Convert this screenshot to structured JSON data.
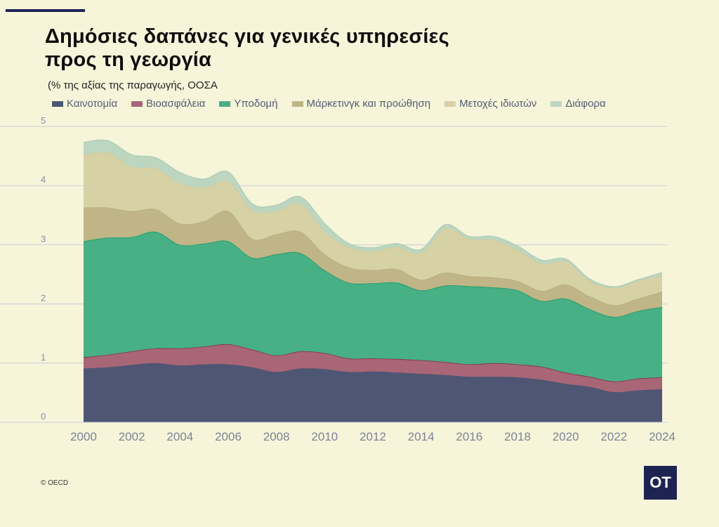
{
  "title_line1": "Δημόσιες δαπάνες για γενικές υπηρεσίες",
  "title_line2": "προς τη γεωργία",
  "subtitle": "(% της αξίας της παραγωγής, ΟΟΣΑ",
  "source": "© OECD",
  "logo_text": "OT",
  "chart_data": {
    "type": "area",
    "stacked": true,
    "title": "Δημόσιες δαπάνες για γενικές υπηρεσίες προς τη γεωργία",
    "ylabel": "% της αξίας της παραγωγής",
    "ylim": [
      0,
      5
    ],
    "yticks": [
      "0",
      "1",
      "2",
      "3",
      "4",
      "5"
    ],
    "xticks": [
      "2000",
      "2002",
      "2004",
      "2006",
      "2008",
      "2010",
      "2012",
      "2014",
      "2016",
      "2018",
      "2020",
      "2022",
      "2024"
    ],
    "grid": true,
    "legend_position": "top",
    "x": [
      2000,
      2001,
      2002,
      2003,
      2004,
      2005,
      2006,
      2007,
      2008,
      2009,
      2010,
      2011,
      2012,
      2013,
      2014,
      2015,
      2016,
      2017,
      2018,
      2019,
      2020,
      2021,
      2022,
      2023,
      2024
    ],
    "series": [
      {
        "name": "Καινοτομία",
        "color": "#4f5673",
        "line": "#4f5673",
        "values": [
          0.91,
          0.93,
          0.97,
          1.0,
          0.96,
          0.98,
          0.98,
          0.93,
          0.85,
          0.91,
          0.9,
          0.85,
          0.86,
          0.84,
          0.82,
          0.8,
          0.77,
          0.77,
          0.76,
          0.72,
          0.65,
          0.6,
          0.51,
          0.54,
          0.56
        ]
      },
      {
        "name": "Βιοασφάλεια",
        "color": "#a86676",
        "line": "#8a2a4f",
        "values": [
          0.19,
          0.21,
          0.23,
          0.25,
          0.29,
          0.3,
          0.34,
          0.3,
          0.28,
          0.29,
          0.27,
          0.23,
          0.22,
          0.23,
          0.23,
          0.22,
          0.21,
          0.23,
          0.22,
          0.22,
          0.19,
          0.17,
          0.18,
          0.2,
          0.2
        ]
      },
      {
        "name": "Υποδομή",
        "color": "#47b085",
        "line": "#14996a",
        "values": [
          1.96,
          1.98,
          1.93,
          1.97,
          1.75,
          1.74,
          1.74,
          1.55,
          1.71,
          1.66,
          1.4,
          1.28,
          1.27,
          1.29,
          1.18,
          1.29,
          1.32,
          1.28,
          1.25,
          1.11,
          1.25,
          1.14,
          1.09,
          1.14,
          1.19
        ]
      },
      {
        "name": "Μάρκετινγκ και προώθηση",
        "color": "#c0b586",
        "line": "#b9ae80",
        "values": [
          0.57,
          0.51,
          0.44,
          0.38,
          0.36,
          0.38,
          0.51,
          0.32,
          0.34,
          0.36,
          0.27,
          0.26,
          0.22,
          0.23,
          0.18,
          0.22,
          0.17,
          0.17,
          0.16,
          0.17,
          0.24,
          0.22,
          0.2,
          0.21,
          0.26
        ]
      },
      {
        "name": "Μετοχές ιδιωτών",
        "color": "#d6d2a6",
        "line": "#cfcb9e",
        "values": [
          0.89,
          0.93,
          0.75,
          0.69,
          0.68,
          0.57,
          0.5,
          0.49,
          0.39,
          0.47,
          0.38,
          0.34,
          0.32,
          0.37,
          0.45,
          0.75,
          0.63,
          0.63,
          0.53,
          0.46,
          0.39,
          0.26,
          0.29,
          0.3,
          0.27
        ]
      },
      {
        "name": "Διάφορα",
        "color": "#bdd6c0",
        "line": "#b2cfb8",
        "values": [
          0.21,
          0.2,
          0.2,
          0.18,
          0.18,
          0.14,
          0.16,
          0.1,
          0.1,
          0.12,
          0.14,
          0.06,
          0.06,
          0.06,
          0.06,
          0.06,
          0.04,
          0.06,
          0.06,
          0.06,
          0.04,
          0.03,
          0.02,
          0.02,
          0.05
        ]
      }
    ]
  }
}
